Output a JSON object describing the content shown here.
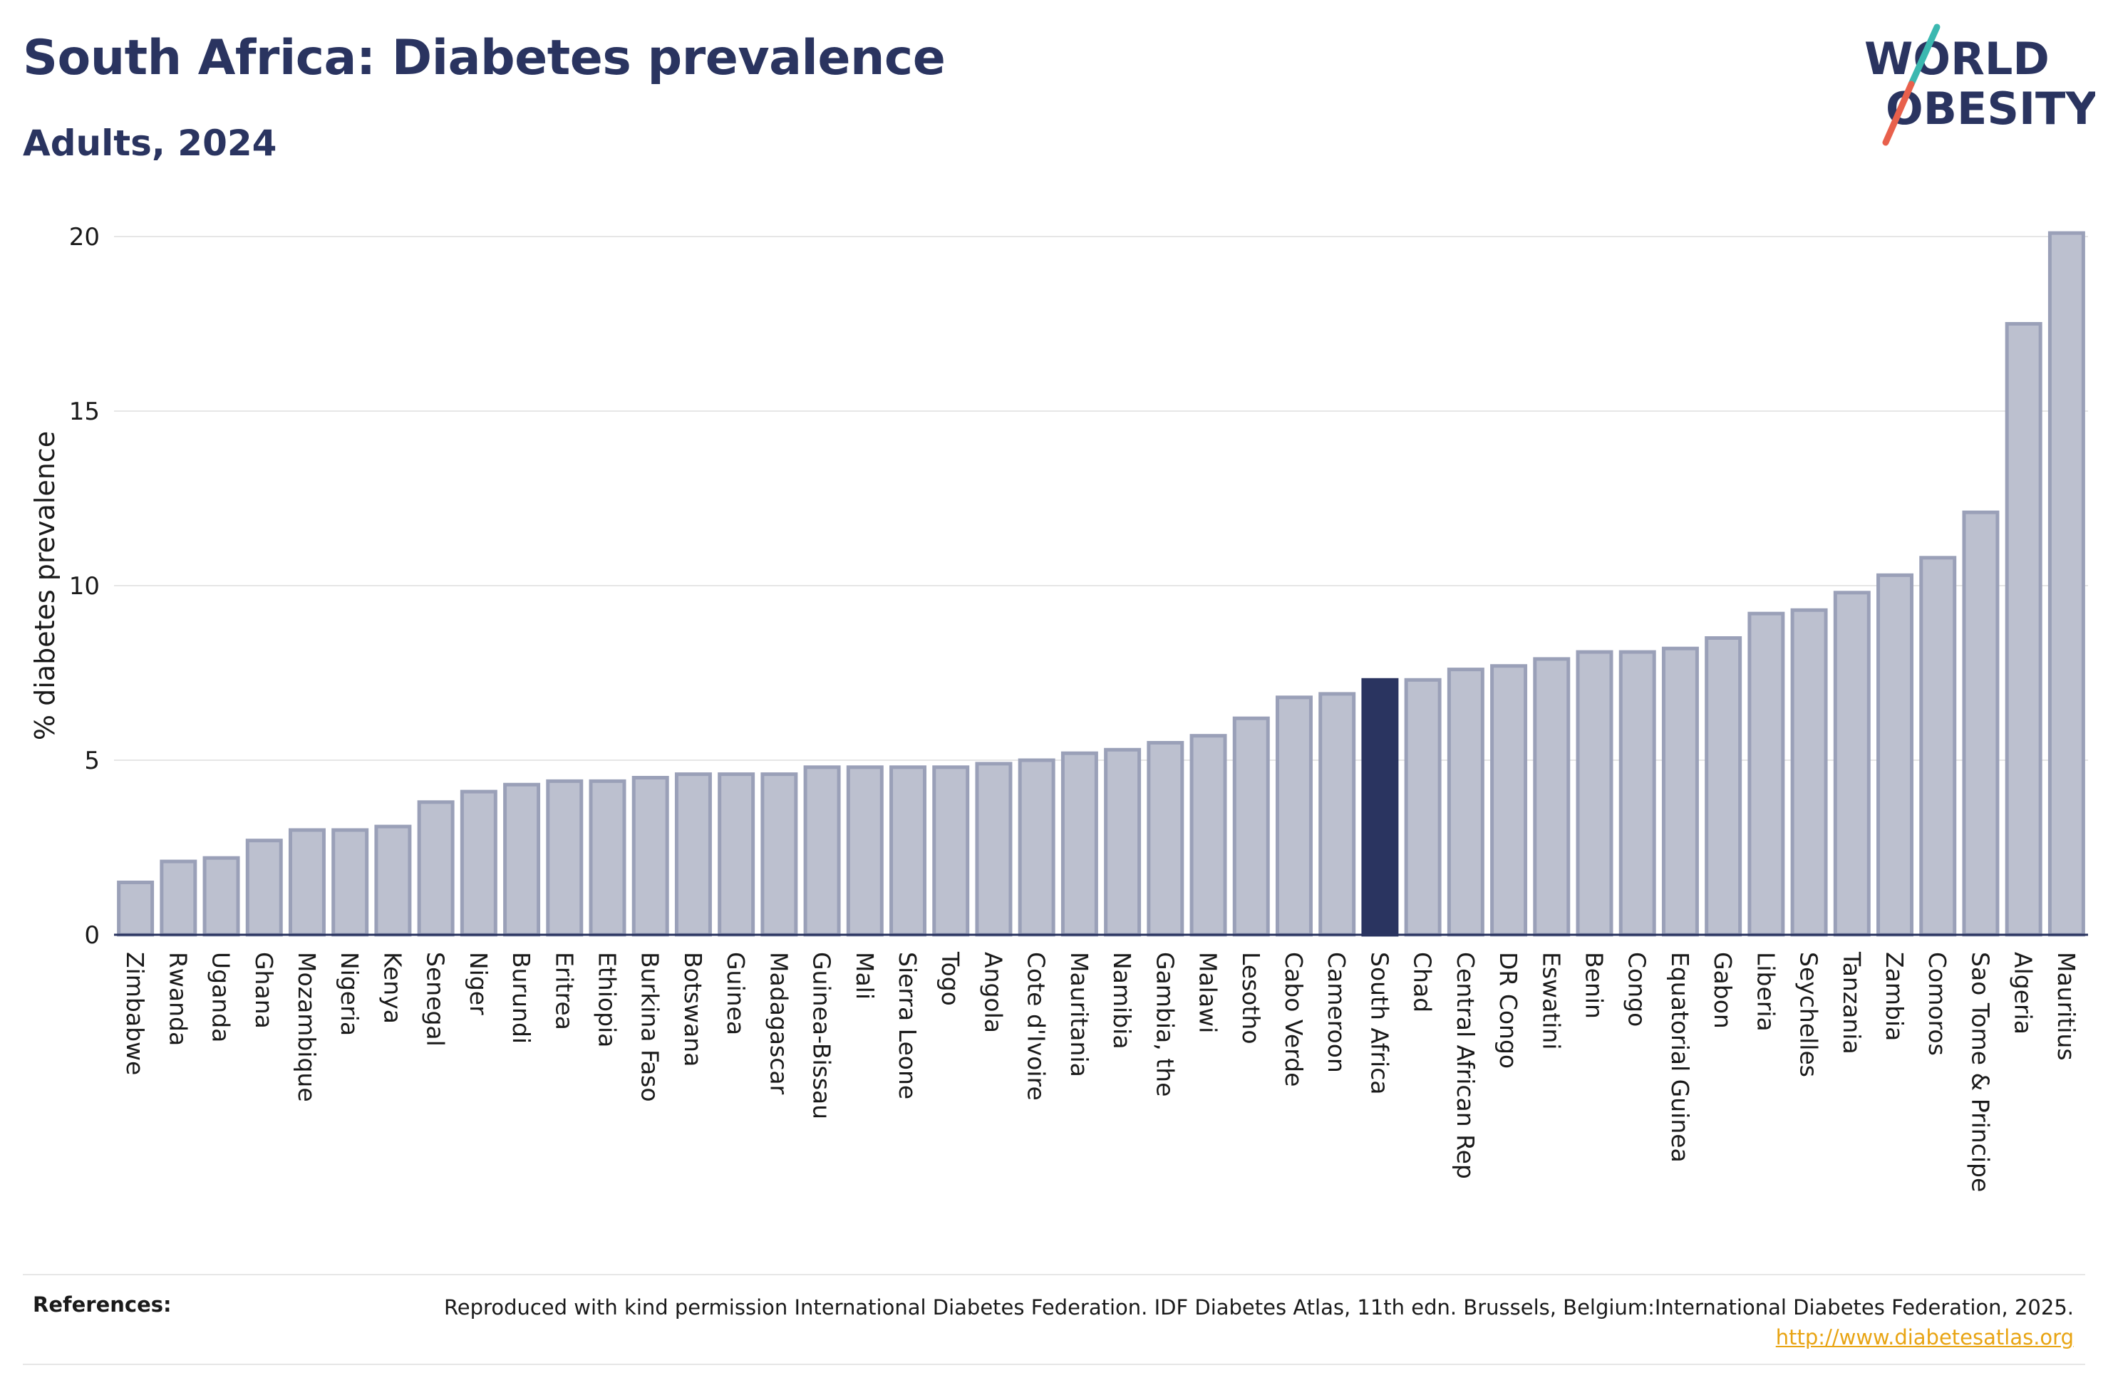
{
  "header": {
    "title": "South Africa: Diabetes prevalence",
    "subtitle": "Adults, 2024"
  },
  "logo": {
    "line1": "WORLD",
    "line2": "OBESITY",
    "colors": {
      "text": "#2a3460",
      "slash_top": "#3bb8b0",
      "slash_bottom": "#e8604c"
    }
  },
  "colors": {
    "bar_fill": "#bcc0cf",
    "bar_stroke": "#9aa0b8",
    "highlight_fill": "#2a3460",
    "grid": "#e6e6e6",
    "axis": "#2a3460"
  },
  "chart_data": {
    "type": "bar",
    "ylabel": "% diabetes prevalence",
    "ylim": [
      0,
      20.5
    ],
    "yticks": [
      0,
      5,
      10,
      15,
      20
    ],
    "grid": true,
    "highlight": "South Africa",
    "categories": [
      "Zimbabwe",
      "Rwanda",
      "Uganda",
      "Ghana",
      "Mozambique",
      "Nigeria",
      "Kenya",
      "Senegal",
      "Niger",
      "Burundi",
      "Eritrea",
      "Ethiopia",
      "Burkina Faso",
      "Botswana",
      "Guinea",
      "Madagascar",
      "Guinea-Bissau",
      "Mali",
      "Sierra Leone",
      "Togo",
      "Angola",
      "Cote d'Ivoire",
      "Mauritania",
      "Namibia",
      "Gambia, the",
      "Malawi",
      "Lesotho",
      "Cabo Verde",
      "Cameroon",
      "South Africa",
      "Chad",
      "Central African Rep",
      "DR Congo",
      "Eswatini",
      "Benin",
      "Congo",
      "Equatorial Guinea",
      "Gabon",
      "Liberia",
      "Seychelles",
      "Tanzania",
      "Zambia",
      "Comoros",
      "Sao Tome & Principe",
      "Algeria",
      "Mauritius"
    ],
    "values": [
      1.5,
      2.1,
      2.2,
      2.7,
      3.0,
      3.0,
      3.1,
      3.8,
      4.1,
      4.3,
      4.4,
      4.4,
      4.5,
      4.6,
      4.6,
      4.6,
      4.8,
      4.8,
      4.8,
      4.8,
      4.9,
      5.0,
      5.2,
      5.3,
      5.5,
      5.7,
      6.2,
      6.8,
      6.9,
      7.3,
      7.3,
      7.6,
      7.7,
      7.9,
      8.1,
      8.1,
      8.2,
      8.5,
      9.2,
      9.3,
      9.8,
      10.3,
      10.8,
      12.1,
      17.5,
      20.1
    ]
  },
  "references": {
    "label": "References:",
    "text": "Reproduced with kind permission International Diabetes Federation. IDF Diabetes Atlas, 11th edn. Brussels, Belgium:International Diabetes Federation, 2025. ",
    "link": "http://www.diabetesatlas.org"
  }
}
